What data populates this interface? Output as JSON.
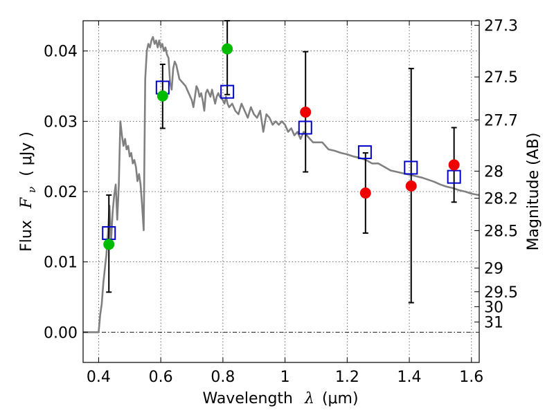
{
  "chart_data": {
    "type": "scatter",
    "xlabel_text": "Wavelength",
    "xlabel_symbol": "λ",
    "xlabel_unit": "(μm)",
    "ylabel_text": "Flux",
    "ylabel_symbol": "F",
    "ylabel_sub": "ν",
    "ylabel_unit": "( μJy )",
    "ylabel_right": "Magnitude (AB)",
    "xlim": [
      0.35,
      1.625
    ],
    "ylim": [
      -0.0043,
      0.0443
    ],
    "x_ticks": [
      0.4,
      0.6,
      0.8,
      1.0,
      1.2,
      1.4,
      1.6
    ],
    "x_tick_labels": [
      "0.4",
      "0.6",
      "0.8",
      "1",
      "1.2",
      "1.4",
      "1.6"
    ],
    "y_ticks": [
      0.0,
      0.01,
      0.02,
      0.03,
      0.04
    ],
    "y_tick_labels": [
      "0.00",
      "0.01",
      "0.02",
      "0.03",
      "0.04"
    ],
    "right_ticks": [
      {
        "mag": 27.3,
        "label": "27.3"
      },
      {
        "mag": 27.5,
        "label": "27.5"
      },
      {
        "mag": 27.7,
        "label": "27.7"
      },
      {
        "mag": 28.0,
        "label": "28"
      },
      {
        "mag": 28.2,
        "label": "28.2"
      },
      {
        "mag": 28.5,
        "label": "28.5"
      },
      {
        "mag": 29.0,
        "label": "29"
      },
      {
        "mag": 29.5,
        "label": "29.5"
      },
      {
        "mag": 30.0,
        "label": "30"
      },
      {
        "mag": 31.0,
        "label": "31"
      }
    ],
    "grid": true,
    "colors": {
      "spectrum": "#808080",
      "model": "#0000cc",
      "green": "#00bb00",
      "red": "#ee0000"
    },
    "spectrum": [
      [
        0.35,
        0.0
      ],
      [
        0.4,
        0.0
      ],
      [
        0.405,
        0.0025
      ],
      [
        0.41,
        0.004
      ],
      [
        0.415,
        0.007
      ],
      [
        0.42,
        0.009
      ],
      [
        0.425,
        0.011
      ],
      [
        0.43,
        0.014
      ],
      [
        0.435,
        0.018
      ],
      [
        0.44,
        0.013
      ],
      [
        0.445,
        0.017
      ],
      [
        0.45,
        0.0195
      ],
      [
        0.455,
        0.021
      ],
      [
        0.46,
        0.016
      ],
      [
        0.465,
        0.021
      ],
      [
        0.47,
        0.03
      ],
      [
        0.475,
        0.028
      ],
      [
        0.48,
        0.0265
      ],
      [
        0.485,
        0.0275
      ],
      [
        0.49,
        0.026
      ],
      [
        0.495,
        0.0265
      ],
      [
        0.5,
        0.025
      ],
      [
        0.505,
        0.0255
      ],
      [
        0.51,
        0.024
      ],
      [
        0.515,
        0.0245
      ],
      [
        0.52,
        0.0235
      ],
      [
        0.525,
        0.0215
      ],
      [
        0.53,
        0.0225
      ],
      [
        0.535,
        0.021
      ],
      [
        0.54,
        0.018
      ],
      [
        0.545,
        0.0145
      ],
      [
        0.55,
        0.036
      ],
      [
        0.555,
        0.04
      ],
      [
        0.56,
        0.041
      ],
      [
        0.565,
        0.0405
      ],
      [
        0.57,
        0.0415
      ],
      [
        0.575,
        0.042
      ],
      [
        0.58,
        0.041
      ],
      [
        0.585,
        0.0415
      ],
      [
        0.59,
        0.0405
      ],
      [
        0.595,
        0.0415
      ],
      [
        0.6,
        0.0405
      ],
      [
        0.605,
        0.041
      ],
      [
        0.61,
        0.04
      ],
      [
        0.615,
        0.0405
      ],
      [
        0.62,
        0.0395
      ],
      [
        0.625,
        0.039
      ],
      [
        0.63,
        0.0355
      ],
      [
        0.635,
        0.0345
      ],
      [
        0.64,
        0.0375
      ],
      [
        0.645,
        0.0385
      ],
      [
        0.65,
        0.038
      ],
      [
        0.655,
        0.037
      ],
      [
        0.66,
        0.036
      ],
      [
        0.67,
        0.0355
      ],
      [
        0.68,
        0.035
      ],
      [
        0.69,
        0.034
      ],
      [
        0.7,
        0.033
      ],
      [
        0.705,
        0.032
      ],
      [
        0.71,
        0.0335
      ],
      [
        0.715,
        0.035
      ],
      [
        0.72,
        0.0345
      ],
      [
        0.725,
        0.0335
      ],
      [
        0.73,
        0.034
      ],
      [
        0.735,
        0.033
      ],
      [
        0.74,
        0.0315
      ],
      [
        0.745,
        0.034
      ],
      [
        0.75,
        0.0345
      ],
      [
        0.755,
        0.034
      ],
      [
        0.76,
        0.0335
      ],
      [
        0.765,
        0.0345
      ],
      [
        0.77,
        0.0335
      ],
      [
        0.775,
        0.0325
      ],
      [
        0.78,
        0.0335
      ],
      [
        0.785,
        0.034
      ],
      [
        0.79,
        0.0335
      ],
      [
        0.8,
        0.033
      ],
      [
        0.805,
        0.0325
      ],
      [
        0.81,
        0.0335
      ],
      [
        0.815,
        0.0325
      ],
      [
        0.82,
        0.032
      ],
      [
        0.83,
        0.0325
      ],
      [
        0.84,
        0.0315
      ],
      [
        0.85,
        0.031
      ],
      [
        0.86,
        0.0325
      ],
      [
        0.87,
        0.0315
      ],
      [
        0.88,
        0.0305
      ],
      [
        0.89,
        0.032
      ],
      [
        0.9,
        0.031
      ],
      [
        0.91,
        0.0305
      ],
      [
        0.92,
        0.0315
      ],
      [
        0.93,
        0.0285
      ],
      [
        0.94,
        0.031
      ],
      [
        0.95,
        0.0305
      ],
      [
        0.96,
        0.0295
      ],
      [
        0.97,
        0.03
      ],
      [
        0.98,
        0.0295
      ],
      [
        0.99,
        0.03
      ],
      [
        1.0,
        0.0295
      ],
      [
        1.01,
        0.0285
      ],
      [
        1.02,
        0.029
      ],
      [
        1.03,
        0.028
      ],
      [
        1.04,
        0.0285
      ],
      [
        1.05,
        0.0275
      ],
      [
        1.06,
        0.0285
      ],
      [
        1.07,
        0.028
      ],
      [
        1.08,
        0.0275
      ],
      [
        1.09,
        0.027
      ],
      [
        1.1,
        0.027
      ],
      [
        1.12,
        0.027
      ],
      [
        1.14,
        0.026
      ],
      [
        1.16,
        0.0258
      ],
      [
        1.18,
        0.0255
      ],
      [
        1.2,
        0.0253
      ],
      [
        1.22,
        0.025
      ],
      [
        1.24,
        0.0248
      ],
      [
        1.26,
        0.0245
      ],
      [
        1.28,
        0.024
      ],
      [
        1.3,
        0.024
      ],
      [
        1.32,
        0.0235
      ],
      [
        1.34,
        0.023
      ],
      [
        1.36,
        0.0228
      ],
      [
        1.38,
        0.0226
      ],
      [
        1.4,
        0.0224
      ],
      [
        1.42,
        0.0222
      ],
      [
        1.44,
        0.022
      ],
      [
        1.46,
        0.0217
      ],
      [
        1.48,
        0.0214
      ],
      [
        1.5,
        0.021
      ],
      [
        1.52,
        0.0207
      ],
      [
        1.54,
        0.0205
      ],
      [
        1.56,
        0.0202
      ],
      [
        1.58,
        0.02
      ],
      [
        1.6,
        0.0197
      ],
      [
        1.625,
        0.0195
      ]
    ],
    "model_points": [
      [
        0.433,
        0.0141
      ],
      [
        0.606,
        0.0348
      ],
      [
        0.814,
        0.0342
      ],
      [
        1.065,
        0.0291
      ],
      [
        1.257,
        0.0256
      ],
      [
        1.405,
        0.0234
      ],
      [
        1.544,
        0.0221
      ]
    ],
    "observed_points": [
      {
        "x": 0.433,
        "y": 0.0125,
        "err": [
          0.0057,
          0.0195
        ],
        "color": "green"
      },
      {
        "x": 0.606,
        "y": 0.0336,
        "err": [
          0.029,
          0.0381
        ],
        "color": "green"
      },
      {
        "x": 0.814,
        "y": 0.0403,
        "err": [
          0.0338,
          0.0443
        ],
        "color": "green"
      },
      {
        "x": 1.066,
        "y": 0.0313,
        "err": [
          0.0228,
          0.0399
        ],
        "color": "red"
      },
      {
        "x": 1.259,
        "y": 0.0198,
        "err": [
          0.0141,
          0.0255
        ],
        "color": "red"
      },
      {
        "x": 1.406,
        "y": 0.0208,
        "err": [
          0.0042,
          0.0375
        ],
        "color": "red"
      },
      {
        "x": 1.544,
        "y": 0.0238,
        "err": [
          0.0185,
          0.0291
        ],
        "color": "red"
      }
    ]
  }
}
